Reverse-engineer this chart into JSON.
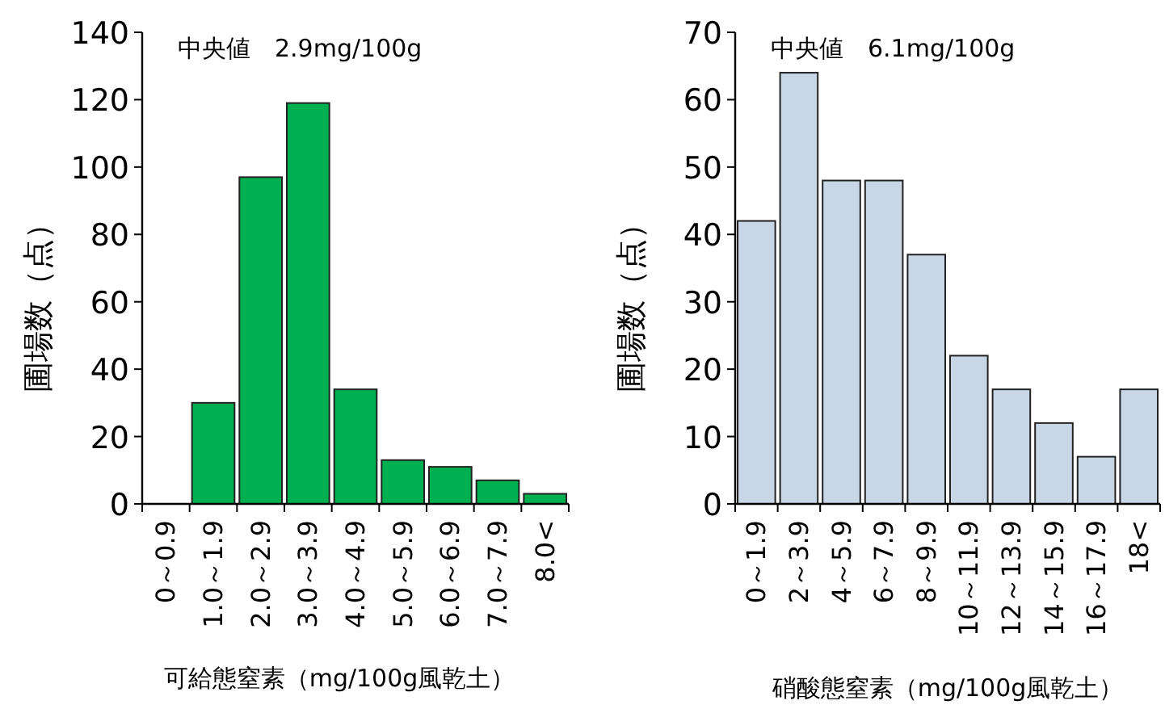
{
  "chart_data": [
    {
      "type": "bar",
      "annotations": [
        "中央値　2.9mg/100g"
      ],
      "xlabel": "可給態窒素（mg/100g風乾土）",
      "ylabel": "圃場数（点）",
      "categories": [
        "0～0.9",
        "1.0～1.9",
        "2.0～2.9",
        "3.0～3.9",
        "4.0～4.9",
        "5.0～5.9",
        "6.0～6.9",
        "7.0～7.9",
        "8.0<"
      ],
      "values": [
        0,
        30,
        97,
        119,
        34,
        13,
        11,
        7,
        3
      ],
      "color": "#00b050",
      "ylim": [
        0,
        140
      ],
      "yticks": [
        0,
        20,
        40,
        60,
        80,
        100,
        120,
        140
      ]
    },
    {
      "type": "bar",
      "annotations": [
        "中央値　6.1mg/100g"
      ],
      "xlabel": "硝酸態窒素（mg/100g風乾土）",
      "ylabel": "圃場数（点）",
      "categories": [
        "0～1.9",
        "2～3.9",
        "4～5.9",
        "6～7.9",
        "8～9.9",
        "10～11.9",
        "12～13.9",
        "14～15.9",
        "16～17.9",
        "18<"
      ],
      "values": [
        42,
        64,
        48,
        48,
        37,
        22,
        17,
        12,
        7,
        17
      ],
      "color": "#c9d6e6",
      "ylim": [
        0,
        70
      ],
      "yticks": [
        0,
        10,
        20,
        30,
        40,
        50,
        60,
        70
      ]
    }
  ]
}
